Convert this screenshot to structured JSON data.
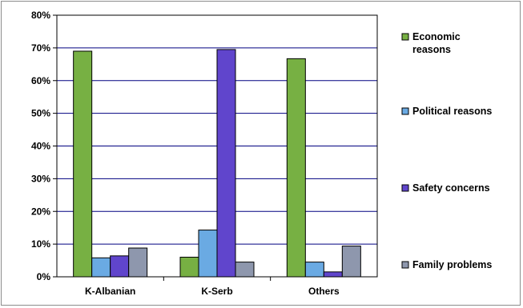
{
  "chart_data": {
    "type": "bar",
    "categories": [
      "K-Albanian",
      "K-Serb",
      "Others"
    ],
    "series": [
      {
        "name": "Economic reasons",
        "color": "#77b043",
        "values": [
          69.0,
          6.0,
          66.7
        ]
      },
      {
        "name": "Political reasons",
        "color": "#6aaae3",
        "values": [
          5.8,
          14.3,
          4.5
        ]
      },
      {
        "name": "Safety concerns",
        "color": "#6045cc",
        "values": [
          6.4,
          69.5,
          1.5
        ]
      },
      {
        "name": "Family problems",
        "color": "#8e97ad",
        "values": [
          8.8,
          4.5,
          9.4
        ]
      }
    ],
    "ylim": [
      0,
      80
    ],
    "y_ticks": [
      "0%",
      "10%",
      "20%",
      "30%",
      "40%",
      "50%",
      "60%",
      "70%",
      "80%"
    ],
    "grid": true,
    "legend_position": "right",
    "legend_labels": [
      [
        "Economic",
        "reasons"
      ],
      [
        "Political reasons"
      ],
      [
        "Safety concerns"
      ],
      [
        "Family problems"
      ]
    ]
  }
}
